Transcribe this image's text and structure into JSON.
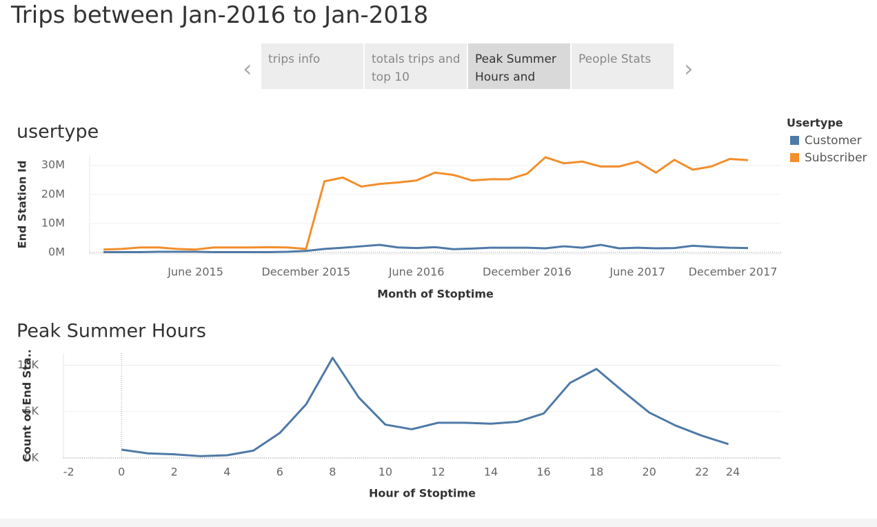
{
  "title": "Trips between Jan-2016 to Jan-2018",
  "tabs": [
    "trips info",
    "totals trips and top 10",
    "Peak Summer Hours and",
    "People Stats"
  ],
  "selected_tab": 2,
  "chart_data": [
    {
      "type": "line",
      "title": "usertype",
      "x_label": "Month of Stoptime",
      "y_label": "End Station Id",
      "legend_title": "Usertype",
      "legend": "right",
      "grid": true,
      "x": [
        "2015-01",
        "2015-02",
        "2015-03",
        "2015-04",
        "2015-05",
        "2015-06",
        "2015-07",
        "2015-08",
        "2015-09",
        "2015-10",
        "2015-11",
        "2015-12",
        "2016-01",
        "2016-02",
        "2016-03",
        "2016-04",
        "2016-05",
        "2016-06",
        "2016-07",
        "2016-08",
        "2016-09",
        "2016-10",
        "2016-11",
        "2016-12",
        "2017-01",
        "2017-02",
        "2017-03",
        "2017-04",
        "2017-05",
        "2017-06",
        "2017-07",
        "2017-08",
        "2017-09",
        "2017-10",
        "2017-11",
        "2017-12"
      ],
      "xlim": [
        "2015-01",
        "2017-12"
      ],
      "xticks": [
        {
          "value": "2015-06",
          "label": "June 2015"
        },
        {
          "value": "2015-12",
          "label": "December 2015"
        },
        {
          "value": "2016-06",
          "label": "June 2016"
        },
        {
          "value": "2016-12",
          "label": "December 2016"
        },
        {
          "value": "2017-06",
          "label": "June 2017"
        },
        {
          "value": "2017-12",
          "label": "December 2017"
        }
      ],
      "ylim": [
        -500000,
        33500000
      ],
      "yticks": [
        {
          "value": 0,
          "label": "0M"
        },
        {
          "value": 10000000,
          "label": "10M"
        },
        {
          "value": 20000000,
          "label": "20M"
        },
        {
          "value": 30000000,
          "label": "30M"
        }
      ],
      "series": [
        {
          "name": "Customer",
          "color": "#4e79a7",
          "values": [
            100000,
            100000,
            100000,
            200000,
            200000,
            200000,
            100000,
            100000,
            100000,
            100000,
            200000,
            500000,
            1200000,
            1600000,
            2100000,
            2600000,
            1700000,
            1500000,
            1800000,
            1100000,
            1300000,
            1600000,
            1600000,
            1600000,
            1400000,
            2100000,
            1600000,
            2600000,
            1400000,
            1600000,
            1400000,
            1500000,
            2300000,
            1900000,
            1600000,
            1500000
          ]
        },
        {
          "name": "Subscriber",
          "color": "#f28e2b",
          "values": [
            1000000,
            1200000,
            1700000,
            1700000,
            1200000,
            1000000,
            1700000,
            1700000,
            1700000,
            1800000,
            1700000,
            1200000,
            24500000,
            25800000,
            22700000,
            23600000,
            24100000,
            24800000,
            27500000,
            26700000,
            24800000,
            25200000,
            25200000,
            27100000,
            32800000,
            30700000,
            31300000,
            29600000,
            29600000,
            31300000,
            27500000,
            31900000,
            28500000,
            29600000,
            32200000,
            31800000
          ]
        }
      ]
    },
    {
      "type": "line",
      "title": "Peak Summer Hours",
      "x_label": "Hour of Stoptime",
      "y_label": "Count of End Sta..",
      "grid": true,
      "x": [
        0,
        1,
        2,
        3,
        4,
        5,
        6,
        7,
        8,
        9,
        10,
        11,
        12,
        13,
        14,
        15,
        16,
        17,
        18,
        19,
        20,
        21,
        22,
        23
      ],
      "xlim": [
        -2.2,
        25
      ],
      "xticks": [
        -2,
        0,
        2,
        4,
        6,
        8,
        10,
        12,
        14,
        16,
        18,
        20,
        22,
        24
      ],
      "ylim": [
        0,
        11300
      ],
      "yticks": [
        {
          "value": 0,
          "label": "0K"
        },
        {
          "value": 5000,
          "label": "5K"
        },
        {
          "value": 10000,
          "label": "10K"
        }
      ],
      "series": [
        {
          "name": "Count of End Station Id",
          "color": "#4e79a7",
          "values": [
            900,
            500,
            400,
            200,
            300,
            800,
            2700,
            5800,
            10800,
            6500,
            3600,
            3100,
            3800,
            3800,
            3700,
            3900,
            4800,
            8100,
            9600,
            7200,
            4900,
            3500,
            2400,
            1500
          ]
        }
      ]
    }
  ]
}
